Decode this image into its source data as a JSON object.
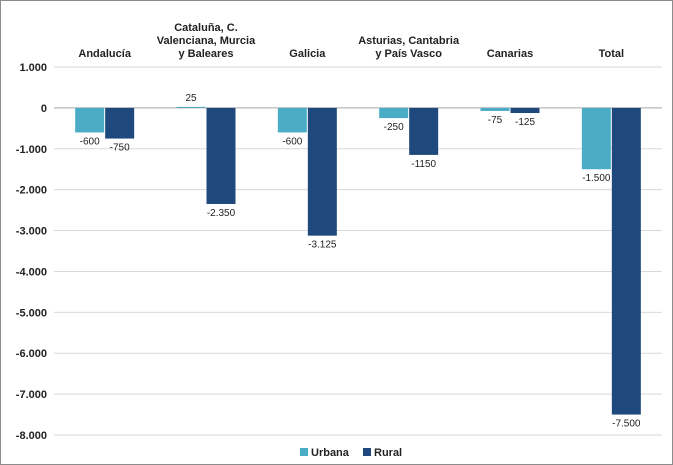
{
  "chart_data": {
    "type": "bar",
    "categories": [
      [
        "Andalucía"
      ],
      [
        "Cataluña, C.",
        "Valenciana, Murcia",
        "y Baleares"
      ],
      [
        "Galicia"
      ],
      [
        "Asturias, Cantabria",
        "y País Vasco"
      ],
      [
        "Canarias"
      ],
      [
        "Total"
      ]
    ],
    "series": [
      {
        "name": "Urbana",
        "color": "#4bacc6",
        "values": [
          -600,
          25,
          -600,
          -250,
          -75,
          -1500
        ],
        "labels": [
          "-600",
          "25",
          "-600",
          "-250",
          "-75",
          "-1.500"
        ]
      },
      {
        "name": "Rural",
        "color": "#1f497d",
        "values": [
          -750,
          -2350,
          -3125,
          -1150,
          -125,
          -7500
        ],
        "labels": [
          "-750",
          "-2.350",
          "-3.125",
          "-1150",
          "-125",
          "-7.500"
        ]
      }
    ],
    "ylim": [
      -8000,
      1000
    ],
    "yticks": [
      1000,
      0,
      -1000,
      -2000,
      -3000,
      -4000,
      -5000,
      -6000,
      -7000,
      -8000
    ],
    "ytick_labels": [
      "1.000",
      "0",
      "-1.000",
      "-2.000",
      "-3.000",
      "-4.000",
      "-5.000",
      "-6.000",
      "-7.000",
      "-8.000"
    ],
    "grid": true,
    "legend_position": "bottom",
    "title": "",
    "xlabel": "",
    "ylabel": ""
  }
}
